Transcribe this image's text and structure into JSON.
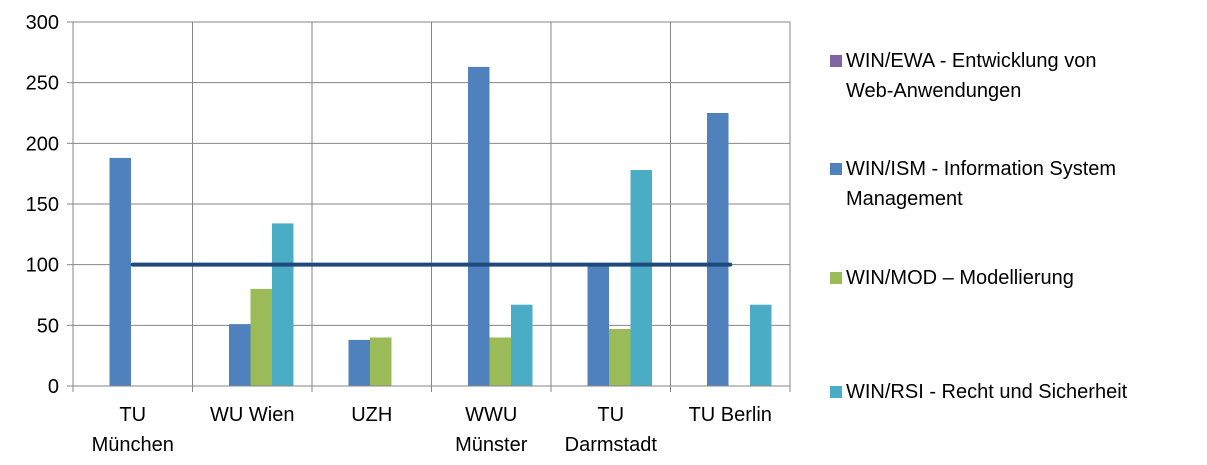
{
  "chart_data": {
    "type": "bar",
    "categories": [
      "TU\nMünchen",
      "WU Wien",
      "UZH",
      "WWU\nMünster",
      "TU\nDarmstadt",
      "TU Berlin"
    ],
    "series": [
      {
        "name": "WIN/EWA - Entwicklung von Web-Anwendungen",
        "color": "#8064A2",
        "values": [
          0,
          0,
          0,
          0,
          0,
          0
        ]
      },
      {
        "name": "WIN/ISM - Information System Management",
        "color": "#4F81BD",
        "values": [
          188,
          51,
          38,
          263,
          101,
          225
        ]
      },
      {
        "name": "WIN/MOD – Modellierung",
        "color": "#9BBB59",
        "values": [
          0,
          80,
          40,
          40,
          47,
          0
        ]
      },
      {
        "name": "WIN/RSI - Recht und Sicherheit",
        "color": "#4BACC6",
        "values": [
          0,
          134,
          0,
          67,
          178,
          67
        ]
      }
    ],
    "reference_line": {
      "value": 100,
      "color": "#1F497D"
    },
    "yticks": [
      0,
      50,
      100,
      150,
      200,
      250,
      300
    ],
    "ylim": [
      0,
      300
    ],
    "grid": true,
    "legend_position": "right"
  },
  "legend": {
    "items": [
      {
        "color": "#8064A2",
        "lines": [
          "WIN/EWA - Entwicklung von",
          "Web-Anwendungen"
        ]
      },
      {
        "color": "#4F81BD",
        "lines": [
          "WIN/ISM - Information System",
          "Management"
        ]
      },
      {
        "color": "#9BBB59",
        "lines": [
          "WIN/MOD – Modellierung"
        ]
      },
      {
        "color": "#4BACC6",
        "lines": [
          "WIN/RSI - Recht und Sicherheit"
        ]
      }
    ]
  }
}
